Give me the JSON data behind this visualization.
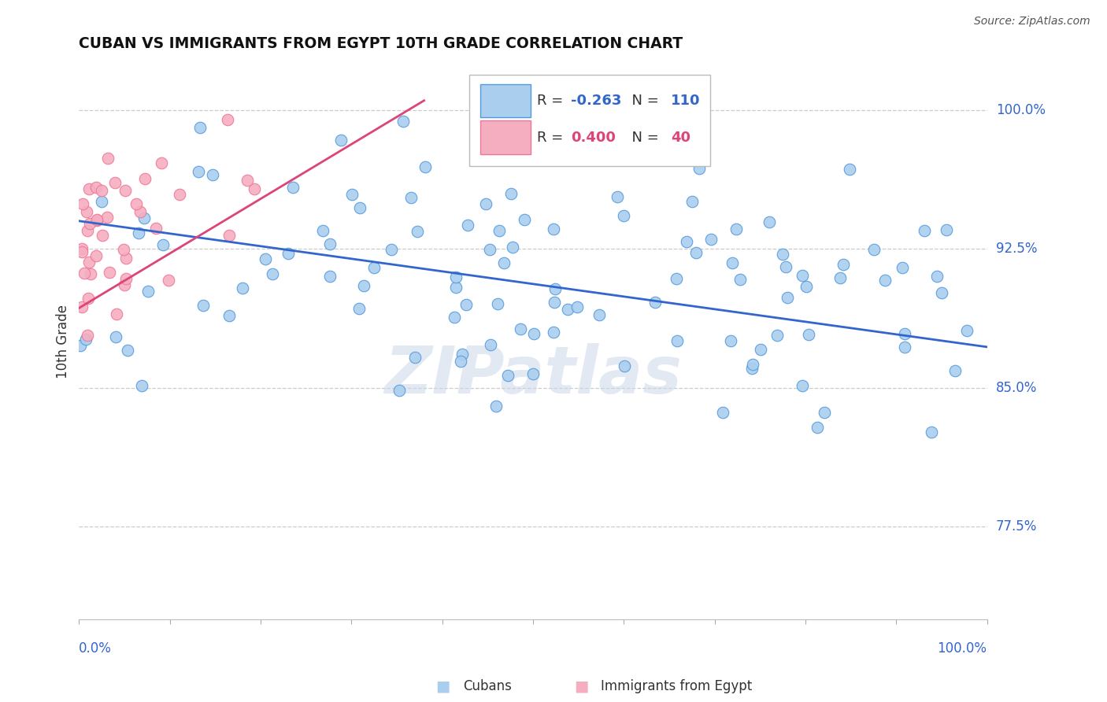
{
  "title": "CUBAN VS IMMIGRANTS FROM EGYPT 10TH GRADE CORRELATION CHART",
  "source": "Source: ZipAtlas.com",
  "ylabel": "10th Grade",
  "ylabel_right_labels": [
    "100.0%",
    "92.5%",
    "85.0%",
    "77.5%"
  ],
  "ylabel_right_values": [
    1.0,
    0.925,
    0.85,
    0.775
  ],
  "xmin": 0.0,
  "xmax": 1.0,
  "ymin": 0.725,
  "ymax": 1.025,
  "r_blue": -0.263,
  "n_blue": 110,
  "r_pink": 0.4,
  "n_pink": 40,
  "legend_label_blue": "Cubans",
  "legend_label_pink": "Immigrants from Egypt",
  "blue_color": "#aacfee",
  "blue_edge_color": "#5599dd",
  "blue_line_color": "#3366cc",
  "pink_color": "#f5aec0",
  "pink_edge_color": "#ee7799",
  "pink_line_color": "#dd4477",
  "watermark": "ZIPatlas",
  "grid_color": "#cccccc",
  "background_color": "#ffffff",
  "blue_trend_x": [
    0.0,
    1.0
  ],
  "blue_trend_y": [
    0.94,
    0.872
  ],
  "pink_trend_x": [
    0.0,
    0.38
  ],
  "pink_trend_y": [
    0.893,
    1.005
  ]
}
